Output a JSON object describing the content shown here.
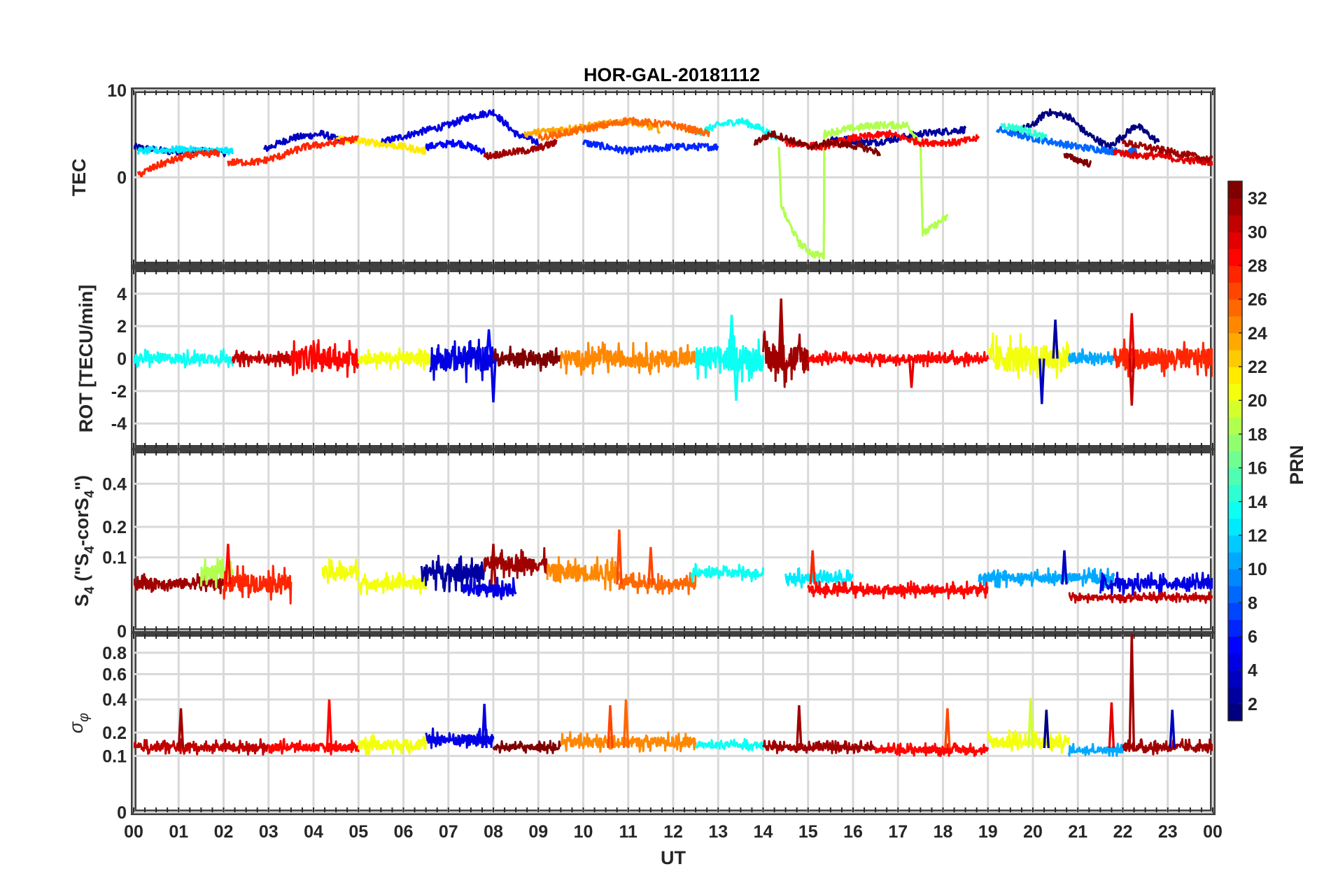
{
  "title": "HOR-GAL-20181112",
  "chart_data": [
    {
      "type": "line",
      "ylabel": "TEC",
      "ylim": [
        -10,
        10
      ],
      "yticks": [
        0,
        10
      ],
      "ytick_labels": [
        "0",
        "10"
      ],
      "grid": true,
      "series": [
        {
          "prn": 2,
          "x": [
            0,
            0.7,
            1.5,
            2.1
          ],
          "y": [
            3.5,
            3,
            3,
            2.8
          ]
        },
        {
          "prn": 3,
          "x": [
            2.9,
            3.5,
            4.2,
            4.6
          ],
          "y": [
            3.2,
            4.5,
            5,
            4.2
          ]
        },
        {
          "prn": 4,
          "x": [
            5.5,
            6.2,
            7,
            7.5,
            8,
            8.5,
            9
          ],
          "y": [
            4,
            5,
            6,
            7,
            7.5,
            5,
            4
          ]
        },
        {
          "prn": 5,
          "x": [
            6.5,
            7.2,
            7.8
          ],
          "y": [
            3.5,
            4,
            3
          ]
        },
        {
          "prn": 6,
          "x": [
            10,
            11,
            12,
            13
          ],
          "y": [
            4,
            3,
            3.5,
            3.5
          ]
        },
        {
          "prn": 2,
          "x": [
            15.5,
            16.5,
            17.5,
            18.5
          ],
          "y": [
            4.5,
            4,
            5,
            5.5
          ]
        },
        {
          "prn": 1,
          "x": [
            19.5,
            20,
            20.3,
            20.8,
            21.2,
            21.7,
            22.3,
            22.8
          ],
          "y": [
            5,
            6,
            7.5,
            7,
            5,
            3.5,
            6,
            4
          ]
        },
        {
          "prn": 8,
          "x": [
            19.2,
            20,
            21,
            21.8,
            22.3
          ],
          "y": [
            5.5,
            4.5,
            3.5,
            3,
            3
          ]
        },
        {
          "prn": 12,
          "x": [
            0.1,
            1,
            2.2
          ],
          "y": [
            3,
            3.2,
            3
          ]
        },
        {
          "prn": 13,
          "x": [
            12.5,
            13,
            13.5,
            14,
            14.3
          ],
          "y": [
            5,
            6,
            6.5,
            5.5,
            4.5
          ]
        },
        {
          "prn": 14,
          "x": [
            19.3,
            19.8,
            20.3
          ],
          "y": [
            6,
            5.5,
            4.5
          ]
        },
        {
          "prn": 18,
          "x": [
            14.35,
            14.4,
            14.5,
            14.8,
            15.1,
            15.35,
            15.36,
            15.8,
            16.5,
            17.2,
            17.5,
            17.55,
            18.1
          ],
          "y": [
            3.5,
            -3,
            -4.5,
            -7.5,
            -8.8,
            -9,
            5,
            5.5,
            6,
            6,
            4,
            -6.5,
            -4.5
          ]
        },
        {
          "prn": 21,
          "x": [
            4.5,
            5.3,
            6,
            6.5
          ],
          "y": [
            4.5,
            4,
            3.5,
            3
          ]
        },
        {
          "prn": 23,
          "x": [
            8.7,
            9.5,
            10.3,
            11,
            11.7
          ],
          "y": [
            5,
            5.5,
            6,
            6.5,
            5.5
          ]
        },
        {
          "prn": 25,
          "x": [
            9,
            10,
            11,
            12,
            12.8
          ],
          "y": [
            4.5,
            5.5,
            6.5,
            6,
            5
          ]
        },
        {
          "prn": 27,
          "x": [
            0.1,
            0.6,
            1.2,
            1.9
          ],
          "y": [
            0.3,
            1.5,
            2.5,
            2.8
          ]
        },
        {
          "prn": 27,
          "x": [
            2.1,
            2.8,
            3.3,
            3.8,
            4.5,
            5
          ],
          "y": [
            1.7,
            1.8,
            2.5,
            3.5,
            4,
            4.5
          ]
        },
        {
          "prn": 28,
          "x": [
            14.5,
            15.3,
            16,
            16.8,
            17.5,
            18.3,
            18.8
          ],
          "y": [
            4,
            3.5,
            4.5,
            5,
            4,
            4,
            4.5
          ]
        },
        {
          "prn": 29,
          "x": [
            21.8,
            22.3,
            22.8,
            23.3,
            24
          ],
          "y": [
            3,
            2.5,
            2.5,
            2,
            1.8
          ]
        },
        {
          "prn": 31,
          "x": [
            7.8,
            8.3,
            8.9,
            9.4
          ],
          "y": [
            2.4,
            2.8,
            3.2,
            4
          ]
        },
        {
          "prn": 32,
          "x": [
            13.8,
            14.2,
            14.5,
            15,
            15.5,
            16.2,
            16.6
          ],
          "y": [
            4,
            5,
            4.5,
            3.5,
            4,
            3.5,
            2.8
          ]
        },
        {
          "prn": 32,
          "x": [
            20.7,
            21,
            21.3
          ],
          "y": [
            2.5,
            2,
            1.5
          ]
        },
        {
          "prn": 31,
          "x": [
            22,
            22.5,
            23,
            23.5,
            24
          ],
          "y": [
            4,
            3.5,
            3,
            2.5,
            2
          ]
        }
      ]
    },
    {
      "type": "line",
      "ylabel": "ROT [TECU/min]",
      "ylim": [
        -5.5,
        5.5
      ],
      "yticks": [
        -4,
        -2,
        0,
        2,
        4
      ],
      "ytick_labels": [
        "-4",
        "-2",
        "0",
        "2",
        "4"
      ],
      "grid": true,
      "segments": [
        {
          "prn": 13,
          "x0": 0,
          "x1": 2.2,
          "amp": 0.6
        },
        {
          "prn": 30,
          "x0": 2.2,
          "x1": 3.5,
          "amp": 0.5
        },
        {
          "prn": 28,
          "x0": 3.5,
          "x1": 5,
          "amp": 1.2
        },
        {
          "prn": 20,
          "x0": 5,
          "x1": 6.6,
          "amp": 0.7
        },
        {
          "prn": 4,
          "x0": 6.6,
          "x1": 8,
          "amp": 1.5
        },
        {
          "prn": 32,
          "x0": 8,
          "x1": 9.5,
          "amp": 0.8
        },
        {
          "prn": 24,
          "x0": 9.5,
          "x1": 12.5,
          "amp": 1.0
        },
        {
          "prn": 13,
          "x0": 12.5,
          "x1": 14,
          "amp": 1.5
        },
        {
          "prn": 31,
          "x0": 14,
          "x1": 15,
          "amp": 1.8
        },
        {
          "prn": 28,
          "x0": 15,
          "x1": 19,
          "amp": 0.5
        },
        {
          "prn": 20,
          "x0": 19,
          "x1": 20.8,
          "amp": 1.6
        },
        {
          "prn": 10,
          "x0": 20.8,
          "x1": 21.8,
          "amp": 0.7
        },
        {
          "prn": 27,
          "x0": 21.8,
          "x1": 24,
          "amp": 1.2
        }
      ],
      "spikes": [
        {
          "prn": 4,
          "x": 8.0,
          "y": -2.7
        },
        {
          "prn": 5,
          "x": 7.9,
          "y": 1.8
        },
        {
          "prn": 31,
          "x": 14.4,
          "y": 3.7
        },
        {
          "prn": 13,
          "x": 13.4,
          "y": -2.6
        },
        {
          "prn": 13,
          "x": 13.3,
          "y": 2.7
        },
        {
          "prn": 3,
          "x": 20.2,
          "y": -2.8
        },
        {
          "prn": 2,
          "x": 20.5,
          "y": 2.4
        },
        {
          "prn": 29,
          "x": 22.2,
          "y": 2.8
        },
        {
          "prn": 30,
          "x": 22.2,
          "y": -2.9
        },
        {
          "prn": 29,
          "x": 17.3,
          "y": -1.8
        }
      ]
    },
    {
      "type": "line",
      "ylabel": "S4 (\"S4-corS4\")",
      "ylabel_parts": {
        "s": "S",
        "sub": "4",
        "mid1": " (\"S",
        "mid2": "-corS",
        "end": "\")"
      },
      "ylim": [
        0,
        0.6
      ],
      "yticks": [
        0,
        0.1,
        0.2,
        0.4
      ],
      "ytick_labels": [
        "0",
        "0.1",
        "0.2",
        "0.4"
      ],
      "grid": true,
      "segments": [
        {
          "prn": 31,
          "x0": 0,
          "x1": 2,
          "base": 0.04,
          "amp": 0.03
        },
        {
          "prn": 18,
          "x0": 1.5,
          "x1": 2.2,
          "base": 0.06,
          "amp": 0.05
        },
        {
          "prn": 27,
          "x0": 2,
          "x1": 3.5,
          "base": 0.04,
          "amp": 0.05
        },
        {
          "prn": 20,
          "x0": 4.2,
          "x1": 5,
          "base": 0.06,
          "amp": 0.05
        },
        {
          "prn": 20,
          "x0": 5,
          "x1": 6.5,
          "base": 0.04,
          "amp": 0.03
        },
        {
          "prn": 2,
          "x0": 6.4,
          "x1": 7.8,
          "base": 0.06,
          "amp": 0.06
        },
        {
          "prn": 4,
          "x0": 7.3,
          "x1": 8.5,
          "base": 0.03,
          "amp": 0.03
        },
        {
          "prn": 31,
          "x0": 7.8,
          "x1": 9.2,
          "base": 0.08,
          "amp": 0.06
        },
        {
          "prn": 24,
          "x0": 9.2,
          "x1": 10.8,
          "base": 0.06,
          "amp": 0.06
        },
        {
          "prn": 25,
          "x0": 10.8,
          "x1": 12.5,
          "base": 0.04,
          "amp": 0.03
        },
        {
          "prn": 13,
          "x0": 12.4,
          "x1": 14,
          "base": 0.06,
          "amp": 0.03
        },
        {
          "prn": 12,
          "x0": 14.5,
          "x1": 16,
          "base": 0.05,
          "amp": 0.03
        },
        {
          "prn": 28,
          "x0": 15,
          "x1": 19,
          "base": 0.03,
          "amp": 0.02
        },
        {
          "prn": 10,
          "x0": 18.8,
          "x1": 21.8,
          "base": 0.05,
          "amp": 0.03
        },
        {
          "prn": 4,
          "x0": 21.5,
          "x1": 24,
          "base": 0.04,
          "amp": 0.03
        },
        {
          "prn": 30,
          "x0": 20.8,
          "x1": 24,
          "base": 0.02,
          "amp": 0.01
        }
      ],
      "spikes": [
        {
          "prn": 26,
          "x": 10.8,
          "y": 0.19
        },
        {
          "prn": 26,
          "x": 11.5,
          "y": 0.13
        },
        {
          "prn": 28,
          "x": 2.1,
          "y": 0.14
        },
        {
          "prn": 27,
          "x": 15.1,
          "y": 0.12
        },
        {
          "prn": 3,
          "x": 20.7,
          "y": 0.12
        },
        {
          "prn": 31,
          "x": 8.0,
          "y": 0.14
        }
      ]
    },
    {
      "type": "line",
      "ylabel": "σφ",
      "ylabel_parts": {
        "sigma": "σ",
        "sub": "φ"
      },
      "ylim": [
        0,
        1
      ],
      "yticks": [
        0,
        0.1,
        0.2,
        0.4,
        0.6,
        0.8
      ],
      "ytick_labels": [
        "0",
        "0.1",
        "0.2",
        "0.4",
        "0.6",
        "0.8"
      ],
      "xlabel": "UT",
      "xlim": [
        0,
        24
      ],
      "xticks": [
        0,
        1,
        2,
        3,
        4,
        5,
        6,
        7,
        8,
        9,
        10,
        11,
        12,
        13,
        14,
        15,
        16,
        17,
        18,
        19,
        20,
        21,
        22,
        23,
        24
      ],
      "xtick_labels": [
        "00",
        "01",
        "02",
        "03",
        "04",
        "05",
        "06",
        "07",
        "08",
        "09",
        "10",
        "11",
        "12",
        "13",
        "14",
        "15",
        "16",
        "17",
        "18",
        "19",
        "20",
        "21",
        "22",
        "23",
        "00"
      ],
      "grid": true,
      "segments": [
        {
          "prn": 30,
          "x0": 0,
          "x1": 3,
          "base": 0.13,
          "amp": 0.05
        },
        {
          "prn": 28,
          "x0": 3,
          "x1": 5,
          "base": 0.13,
          "amp": 0.05
        },
        {
          "prn": 20,
          "x0": 5,
          "x1": 6.5,
          "base": 0.14,
          "amp": 0.07
        },
        {
          "prn": 4,
          "x0": 6.5,
          "x1": 8,
          "base": 0.16,
          "amp": 0.08
        },
        {
          "prn": 32,
          "x0": 8,
          "x1": 9.5,
          "base": 0.13,
          "amp": 0.04
        },
        {
          "prn": 24,
          "x0": 9.5,
          "x1": 12.5,
          "base": 0.15,
          "amp": 0.07
        },
        {
          "prn": 13,
          "x0": 12.5,
          "x1": 14,
          "base": 0.14,
          "amp": 0.04
        },
        {
          "prn": 31,
          "x0": 14,
          "x1": 16.5,
          "base": 0.13,
          "amp": 0.04
        },
        {
          "prn": 28,
          "x0": 16.5,
          "x1": 19,
          "base": 0.12,
          "amp": 0.04
        },
        {
          "prn": 20,
          "x0": 19,
          "x1": 20.8,
          "base": 0.15,
          "amp": 0.08
        },
        {
          "prn": 10,
          "x0": 20.8,
          "x1": 22,
          "base": 0.12,
          "amp": 0.04
        },
        {
          "prn": 31,
          "x0": 22,
          "x1": 24,
          "base": 0.13,
          "amp": 0.05
        }
      ],
      "spikes": [
        {
          "prn": 31,
          "x": 22.2,
          "y": 1.0
        },
        {
          "prn": 28,
          "x": 4.35,
          "y": 0.4
        },
        {
          "prn": 31,
          "x": 1.05,
          "y": 0.34
        },
        {
          "prn": 25,
          "x": 10.95,
          "y": 0.4
        },
        {
          "prn": 19,
          "x": 19.95,
          "y": 0.41
        },
        {
          "prn": 29,
          "x": 21.75,
          "y": 0.38
        },
        {
          "prn": 4,
          "x": 7.8,
          "y": 0.37
        },
        {
          "prn": 31,
          "x": 14.8,
          "y": 0.36
        },
        {
          "prn": 26,
          "x": 18.1,
          "y": 0.34
        },
        {
          "prn": 3,
          "x": 23.1,
          "y": 0.33
        },
        {
          "prn": 26,
          "x": 10.6,
          "y": 0.36
        },
        {
          "prn": 1,
          "x": 20.3,
          "y": 0.33
        }
      ]
    },
    {
      "type": "colorbar",
      "label": "PRN",
      "range": [
        1,
        32
      ],
      "colormap": "jet",
      "ticks": [
        2,
        4,
        6,
        8,
        10,
        12,
        14,
        16,
        18,
        20,
        22,
        24,
        26,
        28,
        30,
        32
      ],
      "tick_labels": [
        "2",
        "4",
        "6",
        "8",
        "10",
        "12",
        "14",
        "16",
        "18",
        "20",
        "22",
        "24",
        "26",
        "28",
        "30",
        "32"
      ]
    }
  ],
  "colors": {
    "grid": "#d9d9d9",
    "axis": "#262626",
    "tick_band": "#404040"
  }
}
